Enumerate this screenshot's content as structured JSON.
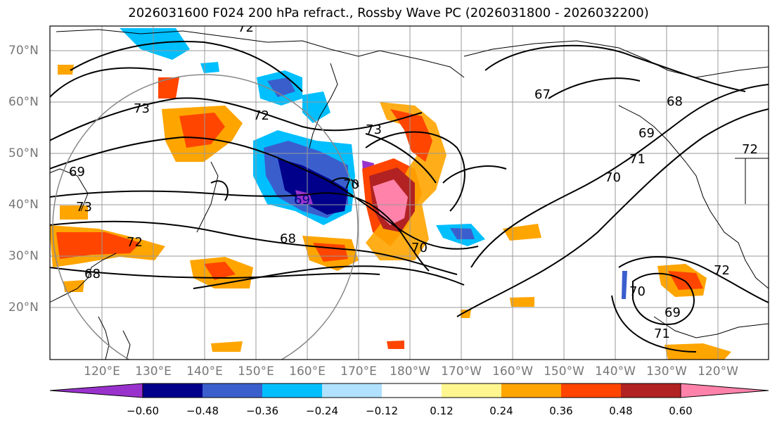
{
  "title": "2026031600 F024 200 hPa refract., Rossby Wave PC (2026031800 - 2026032200)",
  "lat_labels": [
    "70°N",
    "60°N",
    "50°N",
    "40°N",
    "30°N",
    "20°N"
  ],
  "lon_labels": [
    "120°E",
    "130°E",
    "140°E",
    "150°E",
    "160°E",
    "170°E",
    "180°W",
    "170°W",
    "160°W",
    "150°W",
    "140°W",
    "130°W",
    "120°W"
  ],
  "contour_labels": [
    "72",
    "73",
    "72",
    "73",
    "69",
    "73",
    "69",
    "70",
    "68",
    "72",
    "67",
    "68",
    "69",
    "71",
    "70",
    "70",
    "72",
    "68",
    "69",
    "71",
    "72",
    "70"
  ],
  "colorbar": {
    "colors": [
      "#9932cc",
      "#00008b",
      "#3a5fcd",
      "#00bfff",
      "#b0e2ff",
      "#ffffff",
      "#fff68f",
      "#ffa500",
      "#ff4500",
      "#b22222",
      "#ff82ab"
    ],
    "ticks": [
      "−0.60",
      "−0.48",
      "−0.36",
      "−0.24",
      "−0.12",
      "0.12",
      "0.24",
      "0.36",
      "0.48",
      "0.60"
    ]
  }
}
